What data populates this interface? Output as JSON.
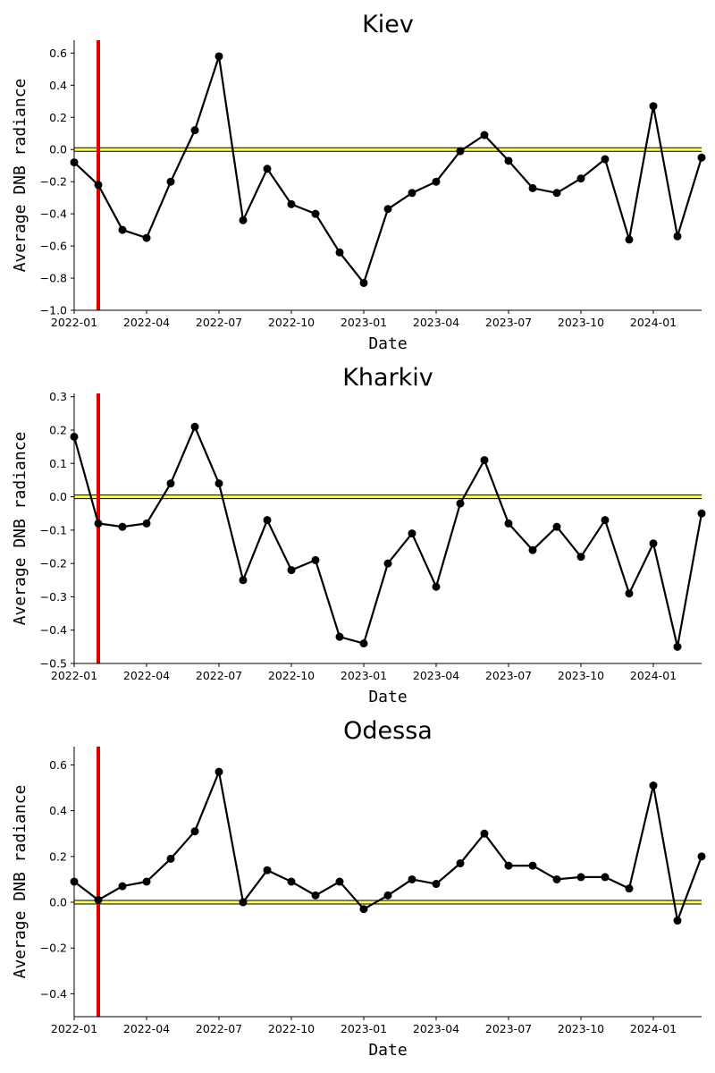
{
  "colors": {
    "line": "#000000",
    "marker": "#000000",
    "event_line": "#e00000",
    "zero_band": "#ffff66",
    "zero_edge": "#000000"
  },
  "chart_data": [
    {
      "type": "line",
      "title": "Kiev",
      "xlabel": "Date",
      "ylabel": "Average DNB radiance",
      "x_tick_labels": [
        "2022-01",
        "2022-04",
        "2022-07",
        "2022-10",
        "2023-01",
        "2023-04",
        "2023-07",
        "2023-10",
        "2024-01"
      ],
      "ylim": [
        -1.0,
        0.68
      ],
      "y_ticks": [
        -1.0,
        -0.8,
        -0.6,
        -0.4,
        -0.2,
        0.0,
        0.2,
        0.4,
        0.6
      ],
      "y_tick_labels": [
        "−1.0",
        "−0.8",
        "−0.6",
        "−0.4",
        "−0.2",
        "0.0",
        "0.2",
        "0.4",
        "0.6"
      ],
      "event_date": "2022-02",
      "zero_reference": 0.0,
      "x": [
        "2022-01",
        "2022-02",
        "2022-03",
        "2022-04",
        "2022-05",
        "2022-06",
        "2022-07",
        "2022-08",
        "2022-09",
        "2022-10",
        "2022-11",
        "2022-12",
        "2023-01",
        "2023-02",
        "2023-03",
        "2023-04",
        "2023-05",
        "2023-06",
        "2023-07",
        "2023-08",
        "2023-09",
        "2023-10",
        "2023-11",
        "2023-12",
        "2024-01",
        "2024-02",
        "2024-03"
      ],
      "values": [
        -0.08,
        -0.22,
        -0.5,
        -0.55,
        -0.2,
        0.12,
        0.58,
        -0.44,
        -0.12,
        -0.34,
        -0.4,
        -0.64,
        -0.83,
        -0.37,
        -0.27,
        -0.2,
        -0.01,
        0.09,
        -0.07,
        -0.24,
        -0.27,
        -0.18,
        -0.06,
        -0.56,
        0.27,
        -0.54,
        -0.05
      ]
    },
    {
      "type": "line",
      "title": "Kharkiv",
      "xlabel": "Date",
      "ylabel": "Average DNB radiance",
      "x_tick_labels": [
        "2022-01",
        "2022-04",
        "2022-07",
        "2022-10",
        "2023-01",
        "2023-04",
        "2023-07",
        "2023-10",
        "2024-01"
      ],
      "ylim": [
        -0.5,
        0.31
      ],
      "y_ticks": [
        -0.5,
        -0.4,
        -0.3,
        -0.2,
        -0.1,
        0.0,
        0.1,
        0.2,
        0.3
      ],
      "y_tick_labels": [
        "−0.5",
        "−0.4",
        "−0.3",
        "−0.2",
        "−0.1",
        "0.0",
        "0.1",
        "0.2",
        "0.3"
      ],
      "event_date": "2022-02",
      "zero_reference": 0.0,
      "x": [
        "2022-01",
        "2022-02",
        "2022-03",
        "2022-04",
        "2022-05",
        "2022-06",
        "2022-07",
        "2022-08",
        "2022-09",
        "2022-10",
        "2022-11",
        "2022-12",
        "2023-01",
        "2023-02",
        "2023-03",
        "2023-04",
        "2023-05",
        "2023-06",
        "2023-07",
        "2023-08",
        "2023-09",
        "2023-10",
        "2023-11",
        "2023-12",
        "2024-01",
        "2024-02",
        "2024-03"
      ],
      "values": [
        0.18,
        -0.08,
        -0.09,
        -0.08,
        0.04,
        0.21,
        0.04,
        -0.25,
        -0.07,
        -0.22,
        -0.19,
        -0.42,
        -0.44,
        -0.2,
        -0.11,
        -0.27,
        -0.02,
        0.11,
        -0.08,
        -0.16,
        -0.09,
        -0.18,
        -0.07,
        -0.29,
        -0.14,
        -0.45,
        -0.05
      ]
    },
    {
      "type": "line",
      "title": "Odessa",
      "xlabel": "Date",
      "ylabel": "Average DNB radiance",
      "x_tick_labels": [
        "2022-01",
        "2022-04",
        "2022-07",
        "2022-10",
        "2023-01",
        "2023-04",
        "2023-07",
        "2023-10",
        "2024-01"
      ],
      "ylim": [
        -0.5,
        0.68
      ],
      "y_ticks": [
        -0.4,
        -0.2,
        0.0,
        0.2,
        0.4,
        0.6
      ],
      "y_tick_labels": [
        "−0.4",
        "−0.2",
        "0.0",
        "0.2",
        "0.4",
        "0.6"
      ],
      "event_date": "2022-02",
      "zero_reference": 0.0,
      "x": [
        "2022-01",
        "2022-02",
        "2022-03",
        "2022-04",
        "2022-05",
        "2022-06",
        "2022-07",
        "2022-08",
        "2022-09",
        "2022-10",
        "2022-11",
        "2022-12",
        "2023-01",
        "2023-02",
        "2023-03",
        "2023-04",
        "2023-05",
        "2023-06",
        "2023-07",
        "2023-08",
        "2023-09",
        "2023-10",
        "2023-11",
        "2023-12",
        "2024-01",
        "2024-02",
        "2024-03"
      ],
      "values": [
        0.09,
        0.01,
        0.07,
        0.09,
        0.19,
        0.31,
        0.57,
        0.0,
        0.14,
        0.09,
        0.03,
        0.09,
        -0.03,
        0.03,
        0.1,
        0.08,
        0.17,
        0.3,
        0.16,
        0.16,
        0.1,
        0.11,
        0.11,
        0.06,
        0.51,
        -0.08,
        0.2
      ]
    }
  ]
}
